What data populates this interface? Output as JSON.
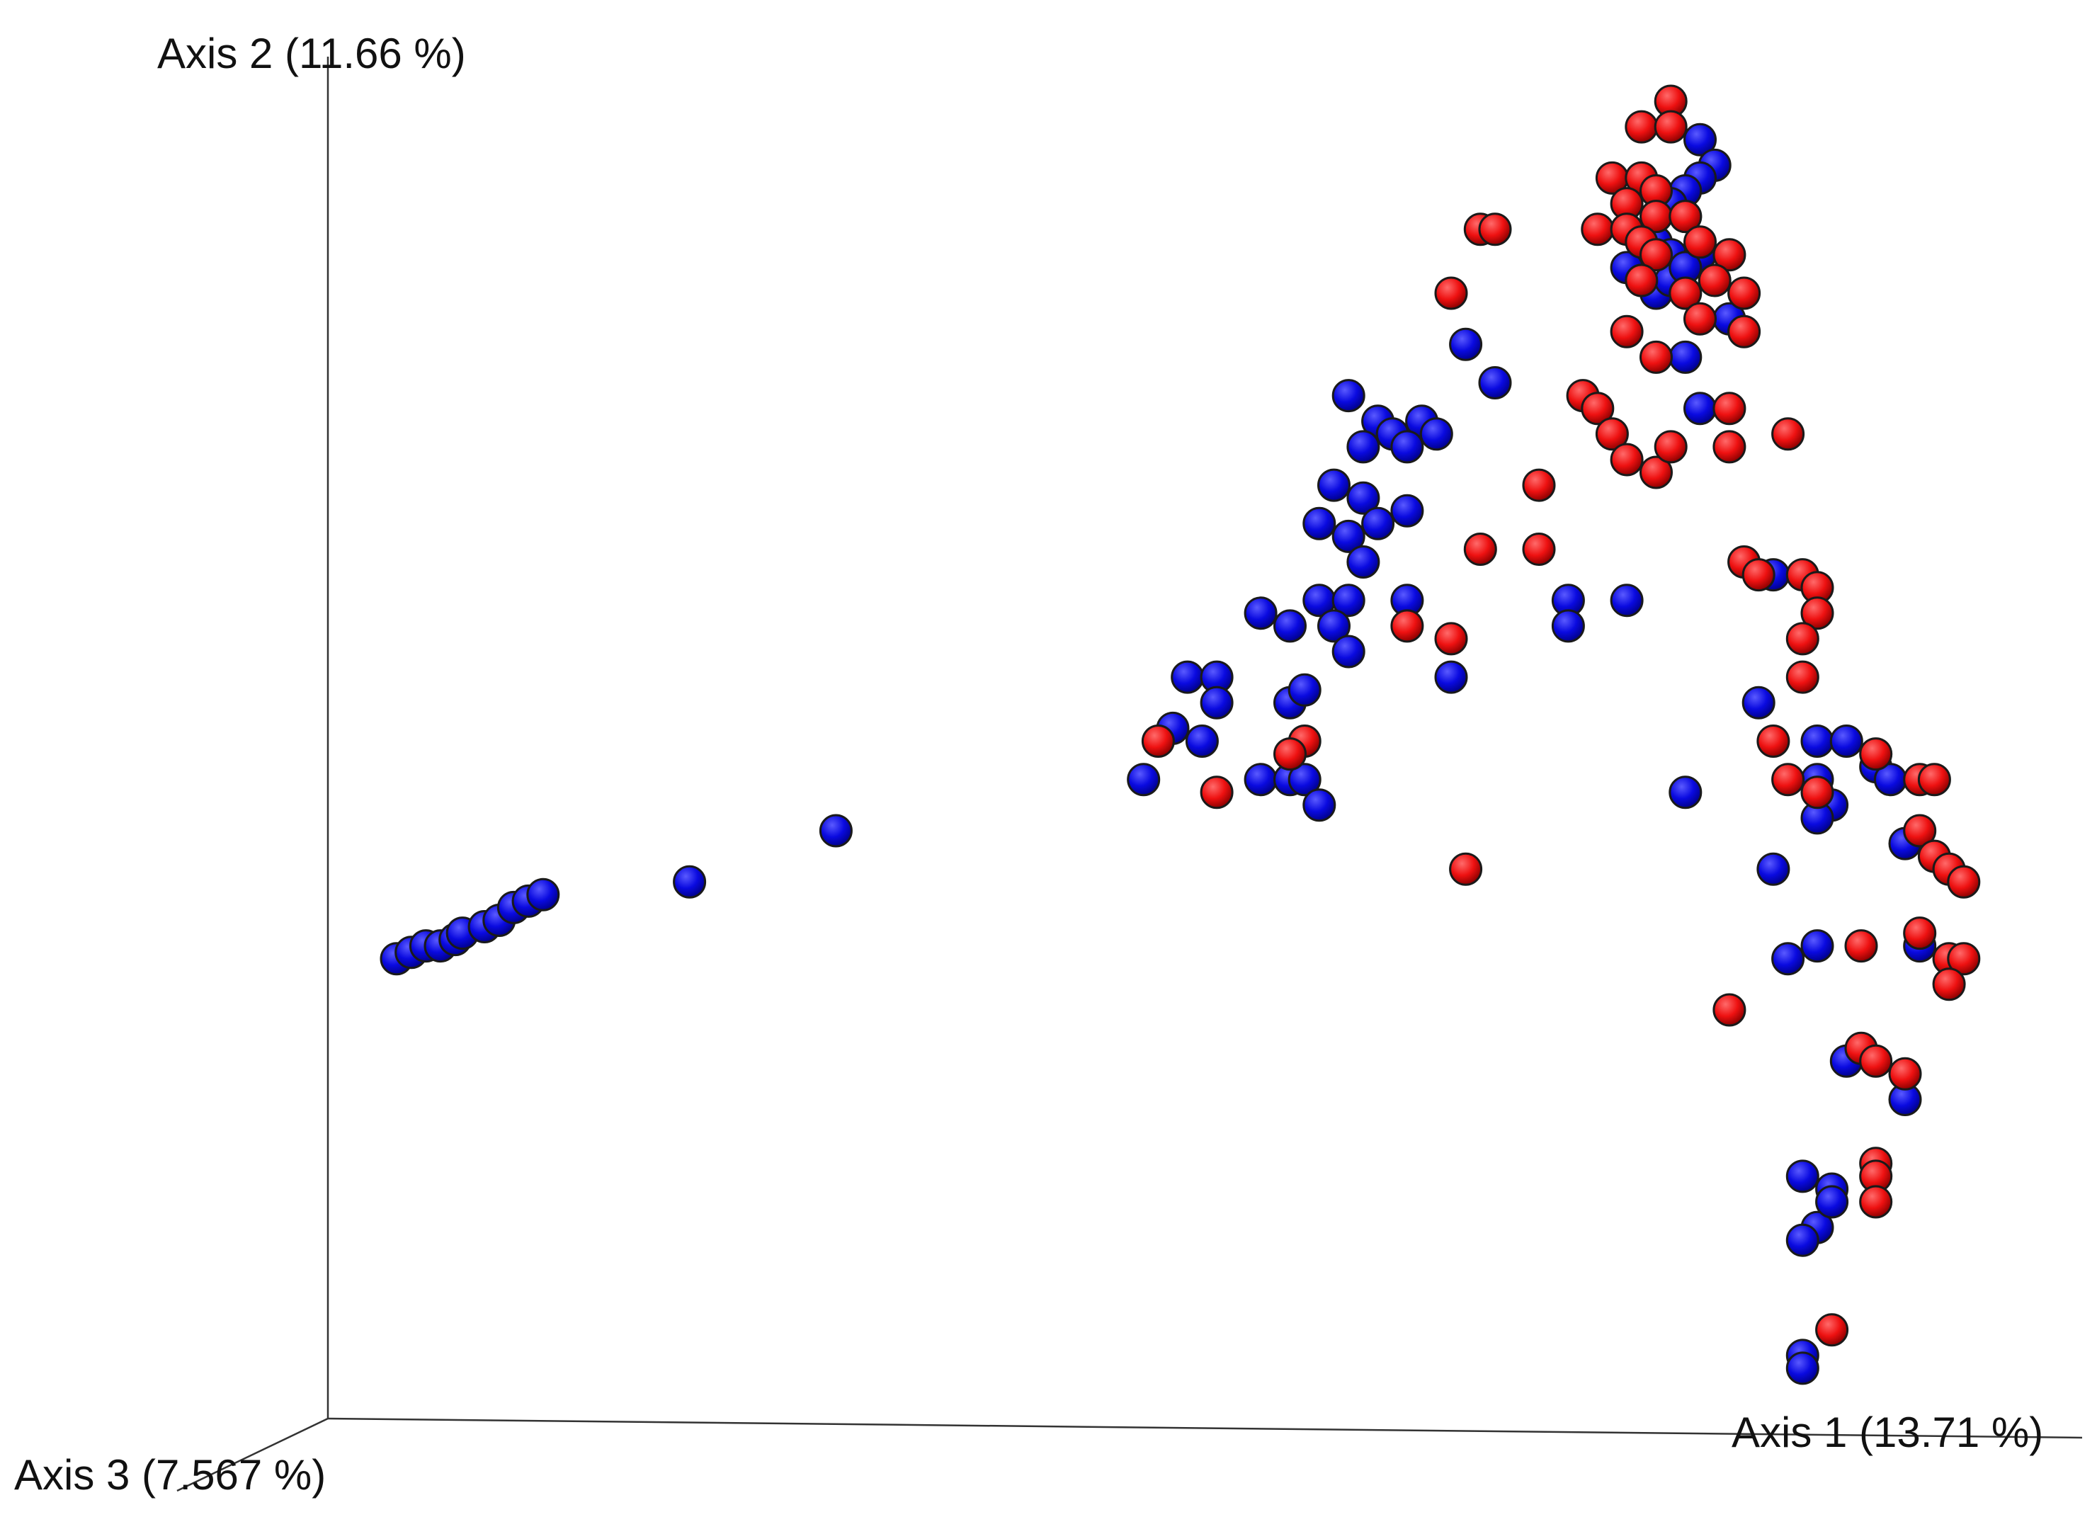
{
  "chart_data": {
    "type": "scatter",
    "subtype": "3d-pcoa",
    "title": "",
    "axes": {
      "x": {
        "label": "Axis 1 (13.71 %)"
      },
      "y": {
        "label": "Axis 2 (11.66 %)"
      },
      "z": {
        "label": "Axis 3 (7.567 %)"
      }
    },
    "grid": false,
    "legend": "none",
    "series": [
      {
        "color": "#0000dd",
        "points": [
          [
            0.89,
            0.97
          ],
          [
            0.9,
            0.95
          ],
          [
            0.89,
            0.94
          ],
          [
            0.88,
            0.93
          ],
          [
            0.87,
            0.92
          ],
          [
            0.88,
            0.91
          ],
          [
            0.86,
            0.89
          ],
          [
            0.87,
            0.88
          ],
          [
            0.89,
            0.88
          ],
          [
            0.84,
            0.87
          ],
          [
            0.85,
            0.86
          ],
          [
            0.86,
            0.85
          ],
          [
            0.87,
            0.86
          ],
          [
            0.88,
            0.87
          ],
          [
            0.91,
            0.83
          ],
          [
            0.88,
            0.8
          ],
          [
            0.89,
            0.76
          ],
          [
            0.73,
            0.81
          ],
          [
            0.75,
            0.78
          ],
          [
            0.65,
            0.77
          ],
          [
            0.67,
            0.75
          ],
          [
            0.68,
            0.74
          ],
          [
            0.7,
            0.75
          ],
          [
            0.66,
            0.73
          ],
          [
            0.69,
            0.73
          ],
          [
            0.71,
            0.74
          ],
          [
            0.64,
            0.7
          ],
          [
            0.66,
            0.69
          ],
          [
            0.69,
            0.68
          ],
          [
            0.63,
            0.67
          ],
          [
            0.65,
            0.66
          ],
          [
            0.67,
            0.67
          ],
          [
            0.66,
            0.64
          ],
          [
            0.63,
            0.61
          ],
          [
            0.65,
            0.61
          ],
          [
            0.69,
            0.61
          ],
          [
            0.59,
            0.6
          ],
          [
            0.61,
            0.59
          ],
          [
            0.64,
            0.59
          ],
          [
            0.65,
            0.57
          ],
          [
            0.8,
            0.61
          ],
          [
            0.8,
            0.59
          ],
          [
            0.84,
            0.61
          ],
          [
            0.72,
            0.55
          ],
          [
            0.54,
            0.55
          ],
          [
            0.56,
            0.55
          ],
          [
            0.56,
            0.53
          ],
          [
            0.61,
            0.53
          ],
          [
            0.62,
            0.54
          ],
          [
            0.53,
            0.51
          ],
          [
            0.55,
            0.5
          ],
          [
            0.51,
            0.47
          ],
          [
            0.59,
            0.47
          ],
          [
            0.61,
            0.47
          ],
          [
            0.62,
            0.47
          ],
          [
            0.63,
            0.45
          ],
          [
            0.88,
            0.46
          ],
          [
            0.94,
            0.63
          ],
          [
            0.93,
            0.53
          ],
          [
            0.97,
            0.5
          ],
          [
            0.99,
            0.5
          ],
          [
            0.97,
            0.47
          ],
          [
            1.01,
            0.48
          ],
          [
            1.02,
            0.47
          ],
          [
            0.98,
            0.45
          ],
          [
            0.97,
            0.44
          ],
          [
            1.03,
            0.42
          ],
          [
            0.94,
            0.4
          ],
          [
            0.95,
            0.33
          ],
          [
            0.97,
            0.34
          ],
          [
            1.04,
            0.34
          ],
          [
            0.99,
            0.25
          ],
          [
            1.03,
            0.22
          ],
          [
            0.96,
            0.16
          ],
          [
            0.98,
            0.15
          ],
          [
            0.97,
            0.12
          ],
          [
            0.96,
            0.11
          ],
          [
            0.98,
            0.14
          ],
          [
            0.96,
            0.02
          ],
          [
            0.96,
            0.01
          ],
          [
            0.0,
            0.33
          ],
          [
            0.01,
            0.335
          ],
          [
            0.02,
            0.34
          ],
          [
            0.03,
            0.34
          ],
          [
            0.04,
            0.345
          ],
          [
            0.045,
            0.35
          ],
          [
            0.06,
            0.355
          ],
          [
            0.07,
            0.36
          ],
          [
            0.08,
            0.37
          ],
          [
            0.09,
            0.375
          ],
          [
            0.1,
            0.38
          ],
          [
            0.2,
            0.39
          ],
          [
            0.3,
            0.43
          ]
        ]
      },
      {
        "color": "#ee1111",
        "points": [
          [
            0.87,
            1.0
          ],
          [
            0.85,
            0.98
          ],
          [
            0.87,
            0.98
          ],
          [
            0.83,
            0.94
          ],
          [
            0.85,
            0.94
          ],
          [
            0.86,
            0.93
          ],
          [
            0.84,
            0.92
          ],
          [
            0.86,
            0.91
          ],
          [
            0.88,
            0.91
          ],
          [
            0.82,
            0.9
          ],
          [
            0.84,
            0.9
          ],
          [
            0.85,
            0.89
          ],
          [
            0.86,
            0.88
          ],
          [
            0.89,
            0.89
          ],
          [
            0.91,
            0.88
          ],
          [
            0.9,
            0.86
          ],
          [
            0.92,
            0.85
          ],
          [
            0.85,
            0.86
          ],
          [
            0.88,
            0.85
          ],
          [
            0.89,
            0.83
          ],
          [
            0.92,
            0.82
          ],
          [
            0.84,
            0.82
          ],
          [
            0.86,
            0.8
          ],
          [
            0.74,
            0.9
          ],
          [
            0.75,
            0.9
          ],
          [
            0.72,
            0.85
          ],
          [
            0.81,
            0.77
          ],
          [
            0.82,
            0.76
          ],
          [
            0.83,
            0.74
          ],
          [
            0.84,
            0.72
          ],
          [
            0.86,
            0.71
          ],
          [
            0.78,
            0.7
          ],
          [
            0.91,
            0.76
          ],
          [
            0.91,
            0.73
          ],
          [
            0.95,
            0.74
          ],
          [
            0.87,
            0.73
          ],
          [
            0.74,
            0.65
          ],
          [
            0.78,
            0.65
          ],
          [
            0.69,
            0.59
          ],
          [
            0.72,
            0.58
          ],
          [
            0.92,
            0.64
          ],
          [
            0.93,
            0.63
          ],
          [
            0.96,
            0.63
          ],
          [
            0.97,
            0.62
          ],
          [
            0.97,
            0.6
          ],
          [
            0.96,
            0.58
          ],
          [
            0.96,
            0.55
          ],
          [
            0.52,
            0.5
          ],
          [
            0.62,
            0.5
          ],
          [
            0.61,
            0.49
          ],
          [
            0.56,
            0.46
          ],
          [
            0.73,
            0.4
          ],
          [
            0.94,
            0.5
          ],
          [
            0.95,
            0.47
          ],
          [
            1.01,
            0.49
          ],
          [
            0.97,
            0.46
          ],
          [
            1.04,
            0.47
          ],
          [
            1.05,
            0.47
          ],
          [
            1.04,
            0.43
          ],
          [
            1.05,
            0.41
          ],
          [
            1.06,
            0.4
          ],
          [
            1.07,
            0.39
          ],
          [
            1.04,
            0.35
          ],
          [
            1.06,
            0.33
          ],
          [
            1.07,
            0.33
          ],
          [
            1.06,
            0.31
          ],
          [
            1.0,
            0.34
          ],
          [
            0.91,
            0.29
          ],
          [
            1.0,
            0.26
          ],
          [
            1.01,
            0.25
          ],
          [
            1.03,
            0.24
          ],
          [
            1.01,
            0.17
          ],
          [
            1.01,
            0.16
          ],
          [
            1.01,
            0.14
          ],
          [
            0.98,
            0.04
          ]
        ]
      }
    ]
  }
}
